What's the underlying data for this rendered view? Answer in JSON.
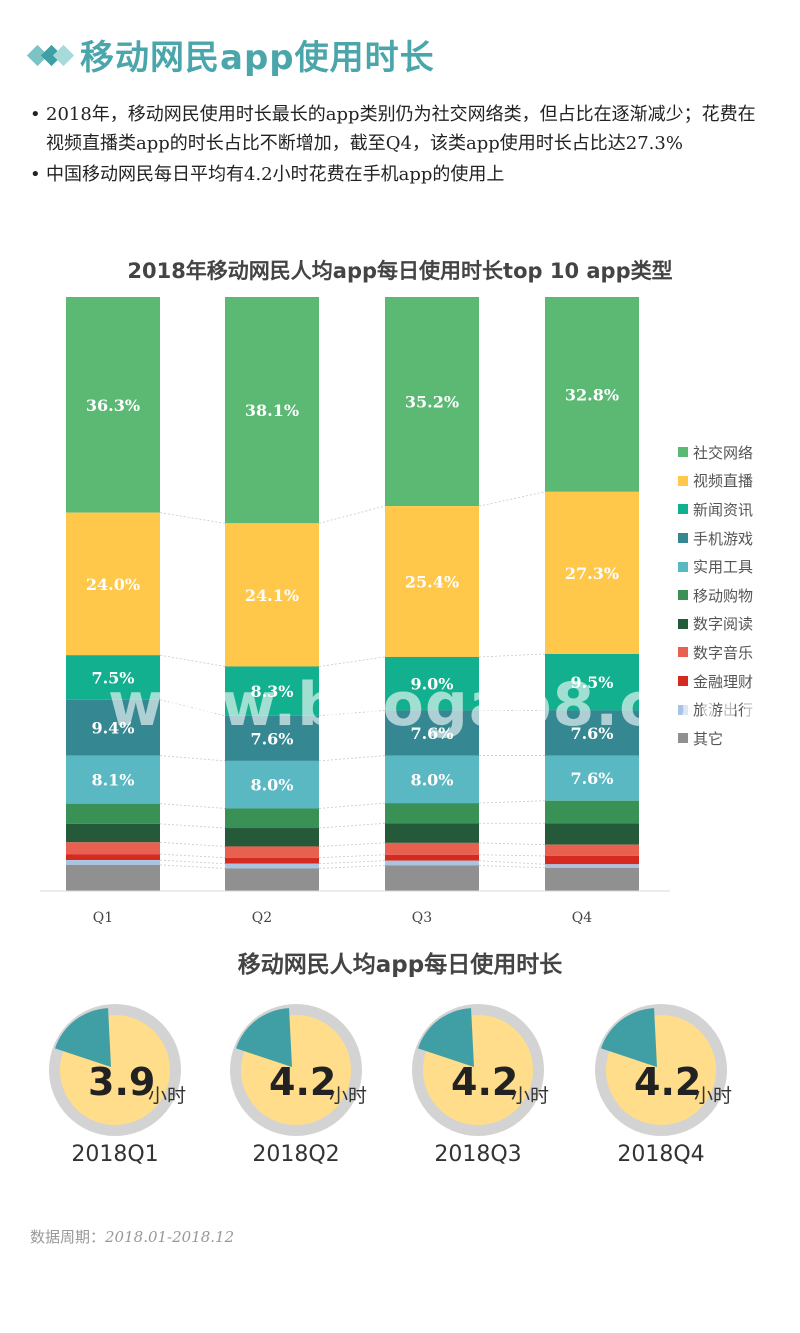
{
  "page": {
    "title": "移动网民app使用时长",
    "bullets": [
      "2018年，移动网民使用时长最长的app类别仍为社交网络类，但占比在逐渐减少；花费在视频直播类app的时长占比不断增加，截至Q4，该类app使用时长占比达27.3%",
      "中国移动网民每日平均有4.2小时花费在手机app的使用上"
    ],
    "watermark": "www.baogao8.com",
    "footnote_label": "数据周期：",
    "footnote_period": "2018.01-2018.12"
  },
  "chart_data": [
    {
      "type": "bar",
      "stacked": true,
      "title": "2018年移动网民人均app每日使用时长top 10 app类型",
      "categories": [
        "Q1",
        "Q2",
        "Q3",
        "Q4"
      ],
      "legend_position": "right",
      "ylim": [
        0,
        100
      ],
      "series": [
        {
          "name": "社交网络",
          "color": "#5bb974",
          "values": [
            36.3,
            38.1,
            35.2,
            32.8
          ],
          "labels": [
            "36.3%",
            "38.1%",
            "35.2%",
            "32.8%"
          ]
        },
        {
          "name": "视频直播",
          "color": "#ffc84a",
          "values": [
            24.0,
            24.1,
            25.4,
            27.3
          ],
          "labels": [
            "24.0%",
            "24.1%",
            "25.4%",
            "27.3%"
          ]
        },
        {
          "name": "新闻资讯",
          "color": "#12b08f",
          "values": [
            7.5,
            8.3,
            9.0,
            9.5
          ],
          "labels": [
            "7.5%",
            "8.3%",
            "9.0%",
            "9.5%"
          ]
        },
        {
          "name": "手机游戏",
          "color": "#358891",
          "values": [
            9.4,
            7.6,
            7.6,
            7.6
          ],
          "labels": [
            "9.4%",
            "7.6%",
            "7.6%",
            "7.6%"
          ]
        },
        {
          "name": "实用工具",
          "color": "#5ab8c3",
          "values": [
            8.1,
            8.0,
            8.0,
            7.6
          ],
          "labels": [
            "8.1%",
            "8.0%",
            "8.0%",
            "7.6%"
          ]
        },
        {
          "name": "移动购物",
          "color": "#3a9156",
          "values": [
            3.4,
            3.3,
            3.4,
            3.8
          ]
        },
        {
          "name": "数字阅读",
          "color": "#24593a",
          "values": [
            3.1,
            3.1,
            3.3,
            3.6
          ]
        },
        {
          "name": "数字音乐",
          "color": "#e8604f",
          "values": [
            2.0,
            1.9,
            2.0,
            1.9
          ]
        },
        {
          "name": "金融理财",
          "color": "#d42a20",
          "values": [
            1.0,
            1.0,
            1.0,
            1.4
          ]
        },
        {
          "name": "旅游出行",
          "color": "#a9c4e2",
          "values": [
            0.8,
            0.8,
            0.8,
            0.6
          ]
        },
        {
          "name": "其它",
          "color": "#909090",
          "values": [
            4.4,
            3.8,
            4.3,
            3.9
          ]
        }
      ]
    },
    {
      "type": "pie",
      "title": "移动网民人均app每日使用时长",
      "categories": [
        "2018Q1",
        "2018Q2",
        "2018Q3",
        "2018Q4"
      ],
      "values": [
        3.9,
        4.2,
        4.2,
        4.2
      ],
      "value_labels": [
        "3.9",
        "4.2",
        "4.2",
        "4.2"
      ],
      "unit": "小时",
      "colors": {
        "fill": "#ffdd8a",
        "slice": "#3f9fa5",
        "ring": "#d3d3d3"
      }
    }
  ]
}
